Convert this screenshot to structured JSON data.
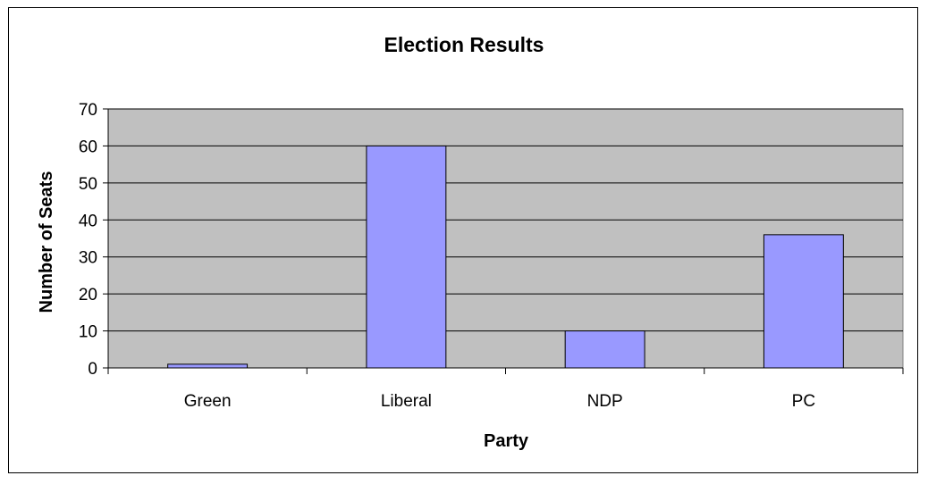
{
  "chart_data": {
    "type": "bar",
    "title": "Election Results",
    "xlabel": "Party",
    "ylabel": "Number of Seats",
    "categories": [
      "Green",
      "Liberal",
      "NDP",
      "PC"
    ],
    "values": [
      1,
      60,
      10,
      36
    ],
    "ylim": [
      0,
      70
    ],
    "yticks": [
      0,
      10,
      20,
      30,
      40,
      50,
      60,
      70
    ],
    "grid": true,
    "legend": "none",
    "colors": {
      "bar": "#9999ff",
      "bar_outline": "#000000",
      "plot_area": "#c0c0c0",
      "gridline": "#000000"
    }
  }
}
